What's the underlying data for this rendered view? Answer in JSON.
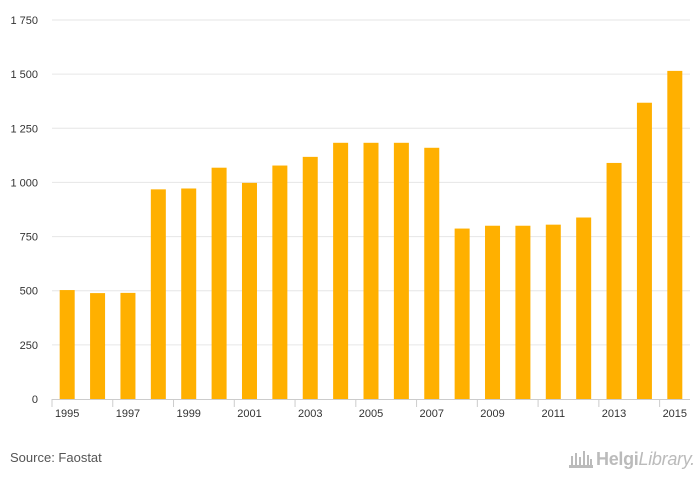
{
  "chart_data": {
    "type": "bar",
    "categories": [
      "1995",
      "1996",
      "1997",
      "1998",
      "1999",
      "2000",
      "2001",
      "2002",
      "2003",
      "2004",
      "2005",
      "2006",
      "2007",
      "2008",
      "2009",
      "2010",
      "2011",
      "2012",
      "2013",
      "2014",
      "2015"
    ],
    "values": [
      503,
      489,
      490,
      968,
      972,
      1068,
      998,
      1078,
      1118,
      1183,
      1183,
      1183,
      1160,
      787,
      800,
      800,
      805,
      838,
      1090,
      1368,
      1515
    ],
    "x_tick_labels": [
      "1995",
      "1997",
      "1999",
      "2001",
      "2003",
      "2005",
      "2007",
      "2009",
      "2011",
      "2013",
      "2015"
    ],
    "y_ticks": [
      0,
      250,
      500,
      750,
      1000,
      1250,
      1500,
      1750
    ],
    "y_tick_labels": [
      "0",
      "250",
      "500",
      "750",
      "1 000",
      "1 250",
      "1 500",
      "1 750"
    ],
    "ylim": [
      0,
      1750
    ],
    "grid": true,
    "bar_color": "#FFB000",
    "grid_color": "#e6e6e6",
    "title": "",
    "xlabel": "",
    "ylabel": ""
  },
  "footer": {
    "source": "Source: Faostat",
    "logo_bold": "Helgi",
    "logo_light": "Library."
  },
  "colors": {
    "text": "#333333",
    "logo": "#bbbbbb"
  }
}
